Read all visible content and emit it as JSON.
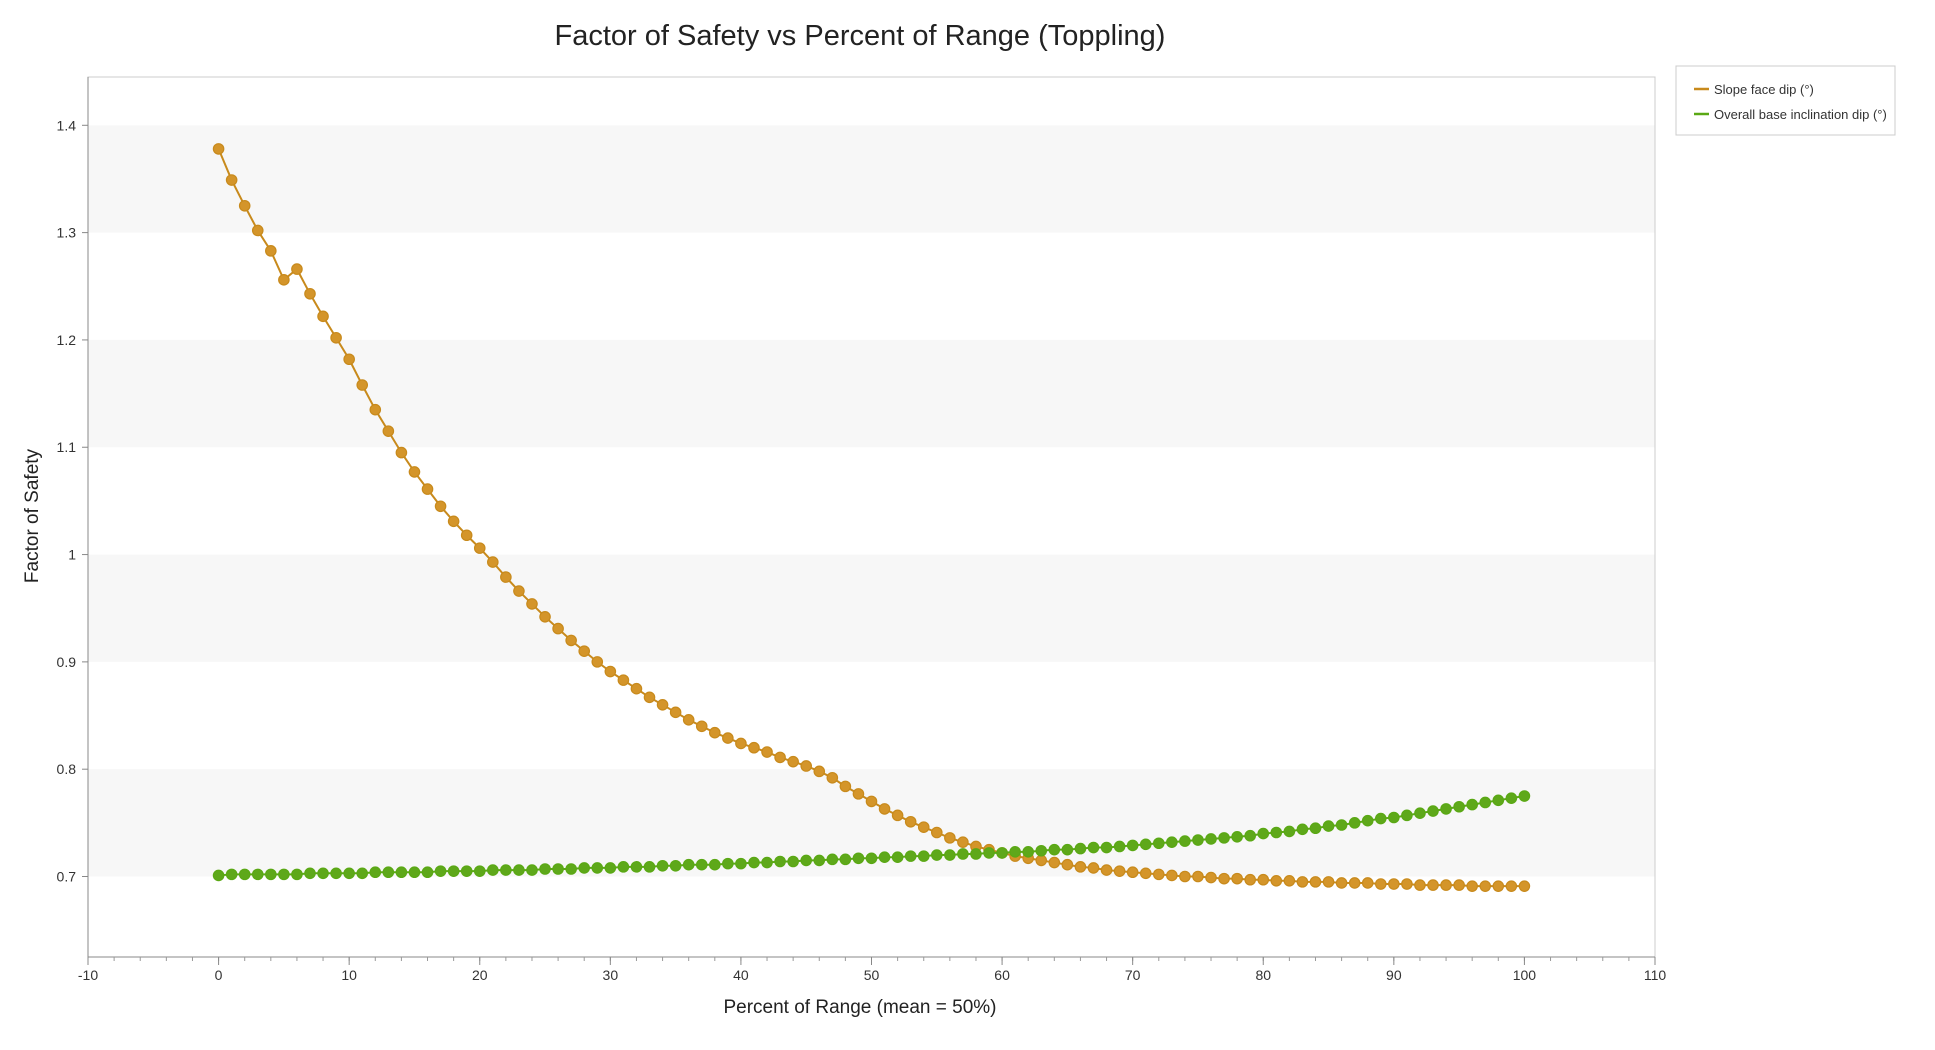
{
  "chart_data": {
    "type": "line",
    "title": "Factor of Safety vs Percent of Range (Toppling)",
    "xlabel": "Percent of Range (mean = 50%)",
    "ylabel": "Factor of Safety",
    "xlim": [
      -10,
      110
    ],
    "ylim": [
      0.625,
      1.445
    ],
    "xticks": [
      -10,
      0,
      10,
      20,
      30,
      40,
      50,
      60,
      70,
      80,
      90,
      100,
      110
    ],
    "yticks": [
      0.7,
      0.8,
      0.9,
      1.0,
      1.1,
      1.2,
      1.3,
      1.4
    ],
    "ytick_labels": [
      "0.7",
      "0.8",
      "0.9",
      "1",
      "1.1",
      "1.2",
      "1.3",
      "1.4"
    ],
    "grid": "alternating horizontal bands",
    "legend_position": "top-right outside",
    "x": [
      0,
      1,
      2,
      3,
      4,
      5,
      6,
      7,
      8,
      9,
      10,
      11,
      12,
      13,
      14,
      15,
      16,
      17,
      18,
      19,
      20,
      21,
      22,
      23,
      24,
      25,
      26,
      27,
      28,
      29,
      30,
      31,
      32,
      33,
      34,
      35,
      36,
      37,
      38,
      39,
      40,
      41,
      42,
      43,
      44,
      45,
      46,
      47,
      48,
      49,
      50,
      51,
      52,
      53,
      54,
      55,
      56,
      57,
      58,
      59,
      60,
      61,
      62,
      63,
      64,
      65,
      66,
      67,
      68,
      69,
      70,
      71,
      72,
      73,
      74,
      75,
      76,
      77,
      78,
      79,
      80,
      81,
      82,
      83,
      84,
      85,
      86,
      87,
      88,
      89,
      90,
      91,
      92,
      93,
      94,
      95,
      96,
      97,
      98,
      99,
      100
    ],
    "series": [
      {
        "name": "Slope face dip (°)",
        "color": "#c88a1c",
        "marker_fill": "#d4952a",
        "values": [
          1.378,
          1.349,
          1.325,
          1.302,
          1.283,
          1.256,
          1.266,
          1.243,
          1.222,
          1.202,
          1.182,
          1.158,
          1.135,
          1.115,
          1.095,
          1.077,
          1.061,
          1.045,
          1.031,
          1.018,
          1.006,
          0.993,
          0.979,
          0.966,
          0.954,
          0.942,
          0.931,
          0.92,
          0.91,
          0.9,
          0.891,
          0.883,
          0.875,
          0.867,
          0.86,
          0.853,
          0.846,
          0.84,
          0.834,
          0.829,
          0.824,
          0.82,
          0.816,
          0.811,
          0.807,
          0.803,
          0.798,
          0.792,
          0.784,
          0.777,
          0.77,
          0.763,
          0.757,
          0.751,
          0.746,
          0.741,
          0.736,
          0.732,
          0.728,
          0.725,
          0.722,
          0.719,
          0.717,
          0.715,
          0.713,
          0.711,
          0.709,
          0.708,
          0.706,
          0.705,
          0.704,
          0.703,
          0.702,
          0.701,
          0.7,
          0.7,
          0.699,
          0.698,
          0.698,
          0.697,
          0.697,
          0.696,
          0.696,
          0.695,
          0.695,
          0.695,
          0.694,
          0.694,
          0.694,
          0.693,
          0.693,
          0.693,
          0.692,
          0.692,
          0.692,
          0.692,
          0.691,
          0.691,
          0.691,
          0.691,
          0.691
        ]
      },
      {
        "name": "Overall base inclination dip (°)",
        "color": "#5aa814",
        "marker_fill": "#5ea81a",
        "values": [
          0.701,
          0.702,
          0.702,
          0.702,
          0.702,
          0.702,
          0.702,
          0.703,
          0.703,
          0.703,
          0.703,
          0.703,
          0.704,
          0.704,
          0.704,
          0.704,
          0.704,
          0.705,
          0.705,
          0.705,
          0.705,
          0.706,
          0.706,
          0.706,
          0.706,
          0.707,
          0.707,
          0.707,
          0.708,
          0.708,
          0.708,
          0.709,
          0.709,
          0.709,
          0.71,
          0.71,
          0.711,
          0.711,
          0.711,
          0.712,
          0.712,
          0.713,
          0.713,
          0.714,
          0.714,
          0.715,
          0.715,
          0.716,
          0.716,
          0.717,
          0.717,
          0.718,
          0.718,
          0.719,
          0.719,
          0.72,
          0.72,
          0.721,
          0.721,
          0.722,
          0.722,
          0.723,
          0.723,
          0.724,
          0.725,
          0.725,
          0.726,
          0.727,
          0.727,
          0.728,
          0.729,
          0.73,
          0.731,
          0.732,
          0.733,
          0.734,
          0.735,
          0.736,
          0.737,
          0.738,
          0.74,
          0.741,
          0.742,
          0.744,
          0.745,
          0.747,
          0.748,
          0.75,
          0.752,
          0.754,
          0.755,
          0.757,
          0.759,
          0.761,
          0.763,
          0.765,
          0.767,
          0.769,
          0.771,
          0.773,
          0.775
        ]
      }
    ]
  }
}
